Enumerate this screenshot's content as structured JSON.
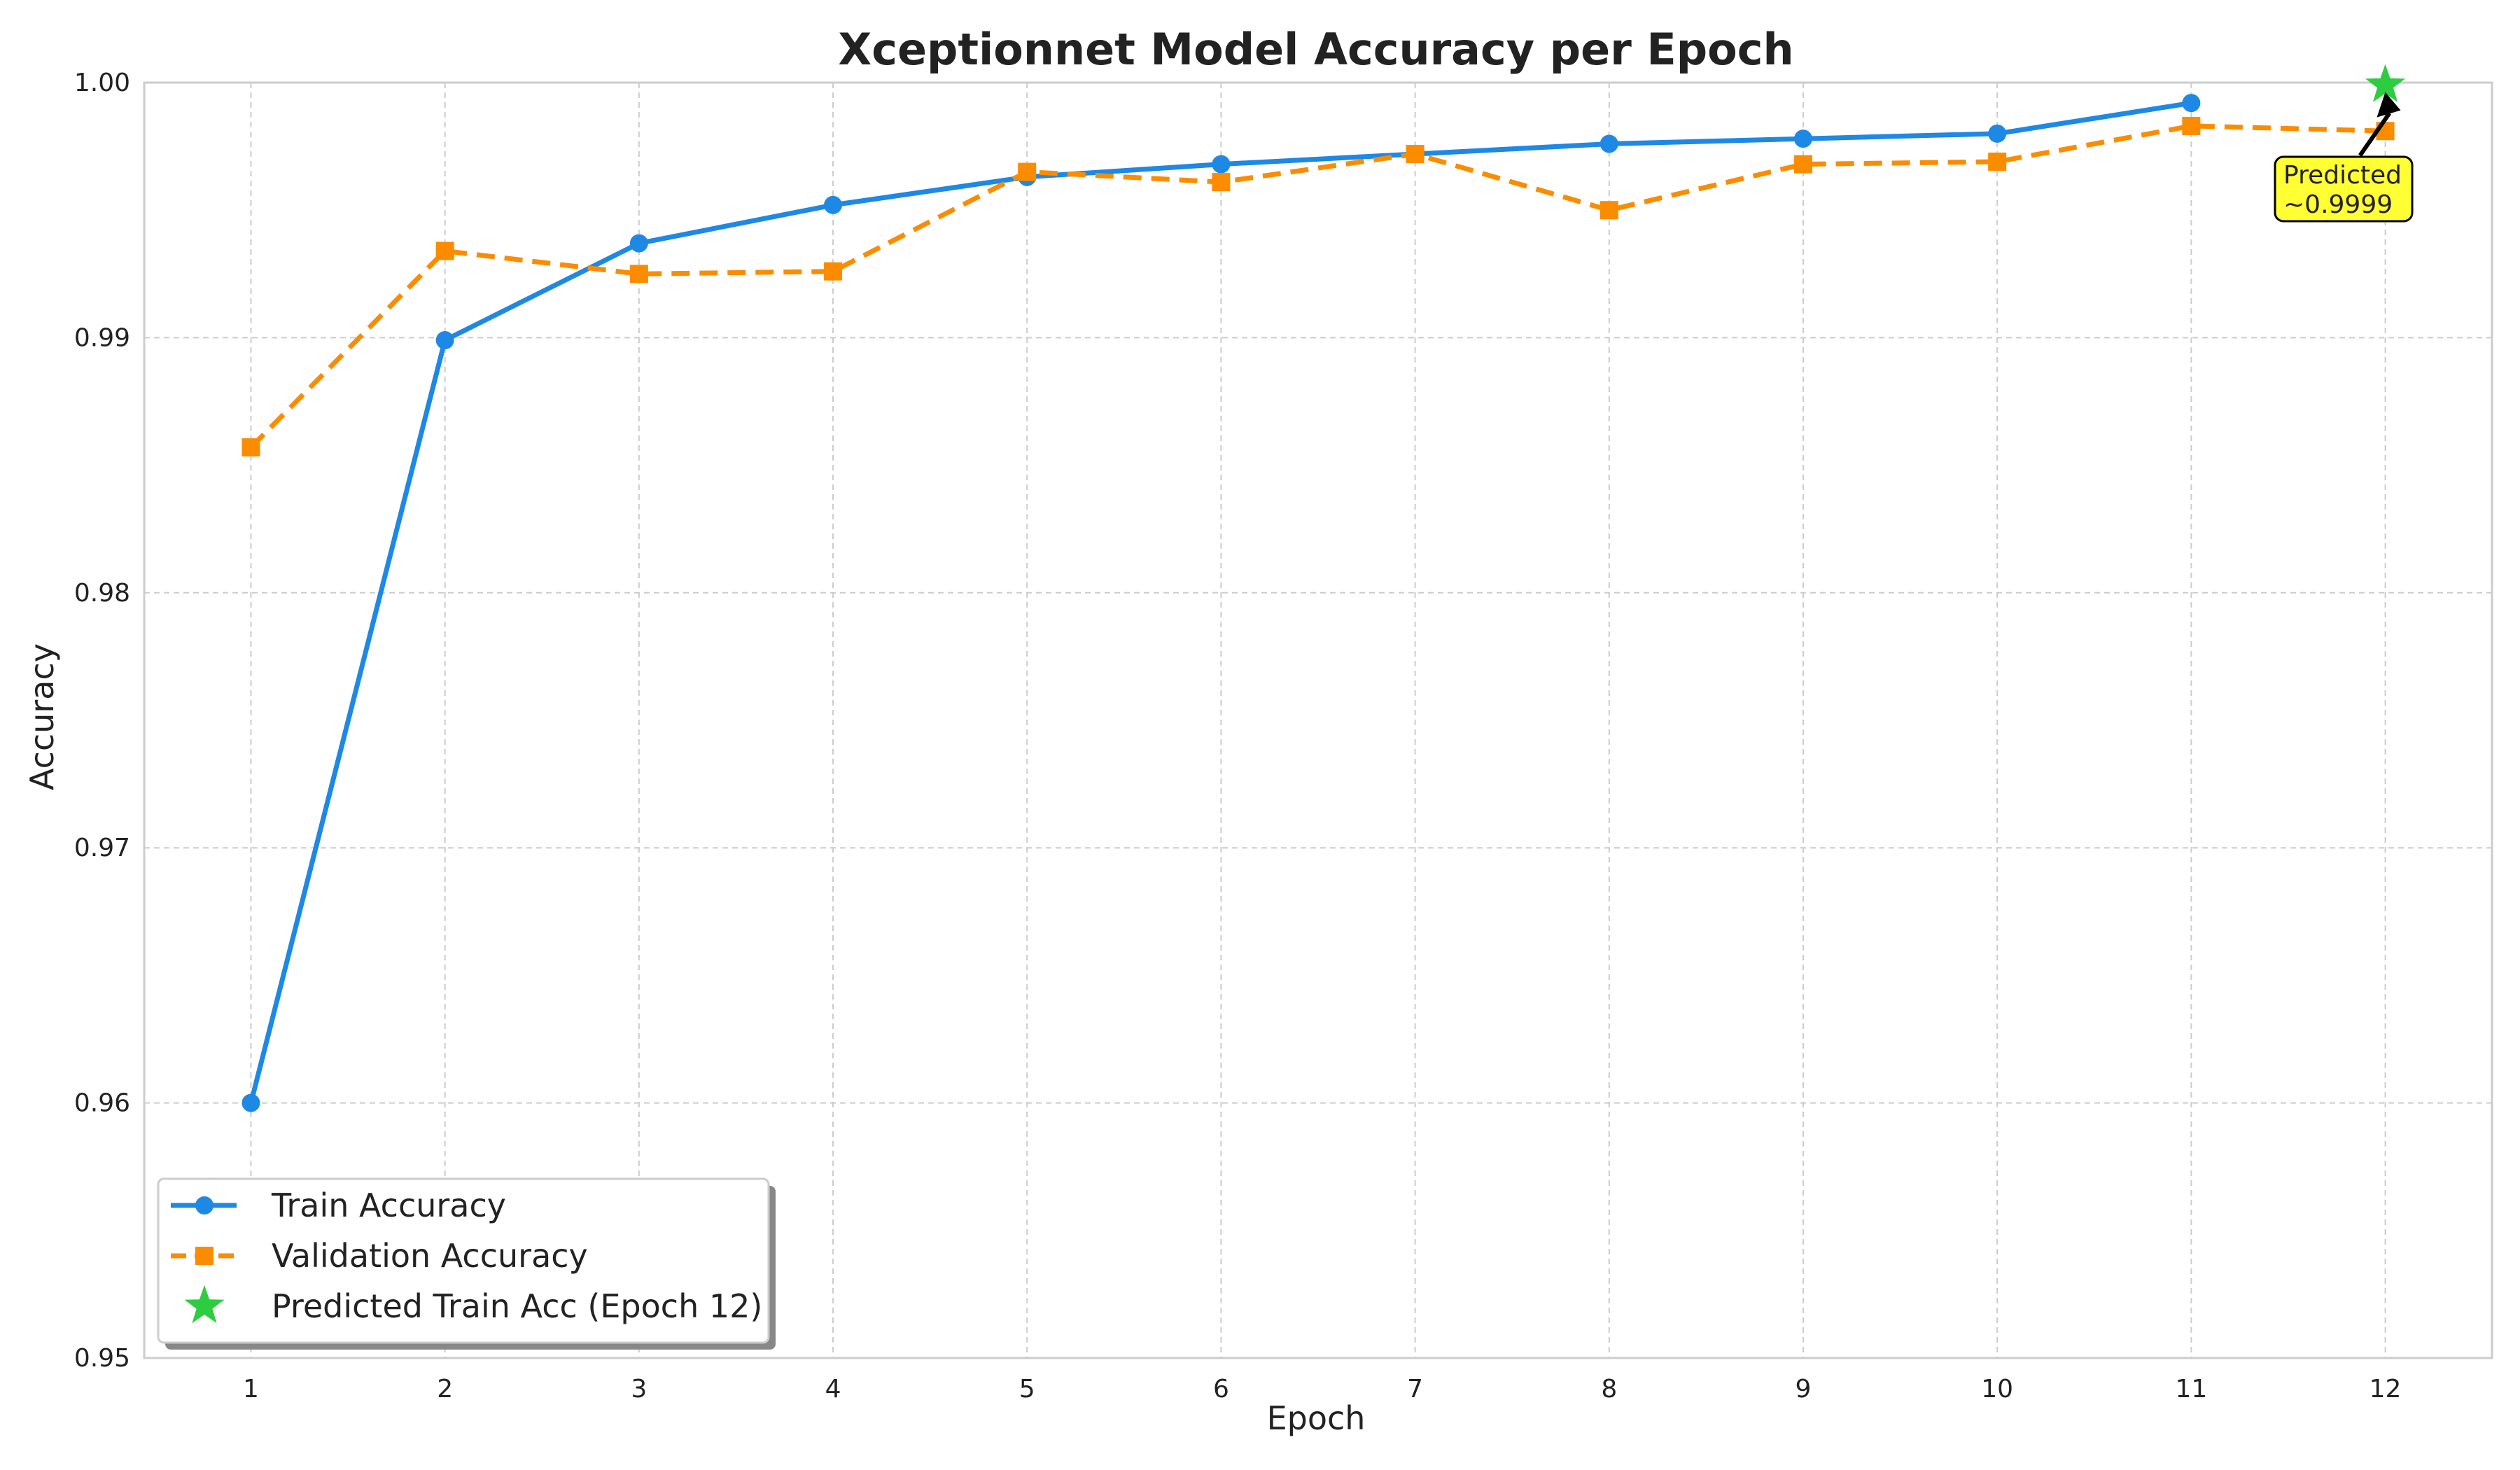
{
  "chart_data": {
    "type": "line",
    "title": "Xceptionnet Model Accuracy per Epoch",
    "xlabel": "Epoch",
    "ylabel": "Accuracy",
    "x": [
      1,
      2,
      3,
      4,
      5,
      6,
      7,
      8,
      9,
      10,
      11,
      12
    ],
    "xlim": [
      0.45,
      12.55
    ],
    "ylim": [
      0.95,
      1.0
    ],
    "yticks": [
      0.95,
      0.96,
      0.97,
      0.98,
      0.99,
      1.0
    ],
    "ytick_labels": [
      "0.95",
      "0.96",
      "0.97",
      "0.98",
      "0.99",
      "1.00"
    ],
    "xtick_labels": [
      "1",
      "2",
      "3",
      "4",
      "5",
      "6",
      "7",
      "8",
      "9",
      "10",
      "11",
      "12"
    ],
    "grid": true,
    "legend_position": "lower-left",
    "series": [
      {
        "name": "Train Accuracy",
        "color": "#1e88e5",
        "marker": "circle",
        "line_style": "solid",
        "x": [
          1,
          2,
          3,
          4,
          5,
          6,
          7,
          8,
          9,
          10,
          11
        ],
        "values": [
          0.96,
          0.9899,
          0.9937,
          0.9952,
          0.9963,
          0.9968,
          0.9972,
          0.9976,
          0.9978,
          0.998,
          0.9992
        ]
      },
      {
        "name": "Validation Accuracy",
        "color": "#fb8c00",
        "marker": "square",
        "line_style": "dashed",
        "x": [
          1,
          2,
          3,
          4,
          5,
          6,
          7,
          8,
          9,
          10,
          11,
          12
        ],
        "values": [
          0.9857,
          0.9934,
          0.9925,
          0.9926,
          0.9965,
          0.9961,
          0.9972,
          0.995,
          0.9968,
          0.9969,
          0.9983,
          0.9981
        ]
      },
      {
        "name": "Predicted Train Acc (Epoch 12)",
        "color": "#2ecc40",
        "marker": "star",
        "line_style": "none",
        "x": [
          12
        ],
        "values": [
          0.9999
        ]
      }
    ],
    "annotation": {
      "text_lines": [
        "Predicted",
        "~0.9999"
      ],
      "x": 12,
      "y": 0.9999,
      "box_color": "#ffff33"
    }
  }
}
